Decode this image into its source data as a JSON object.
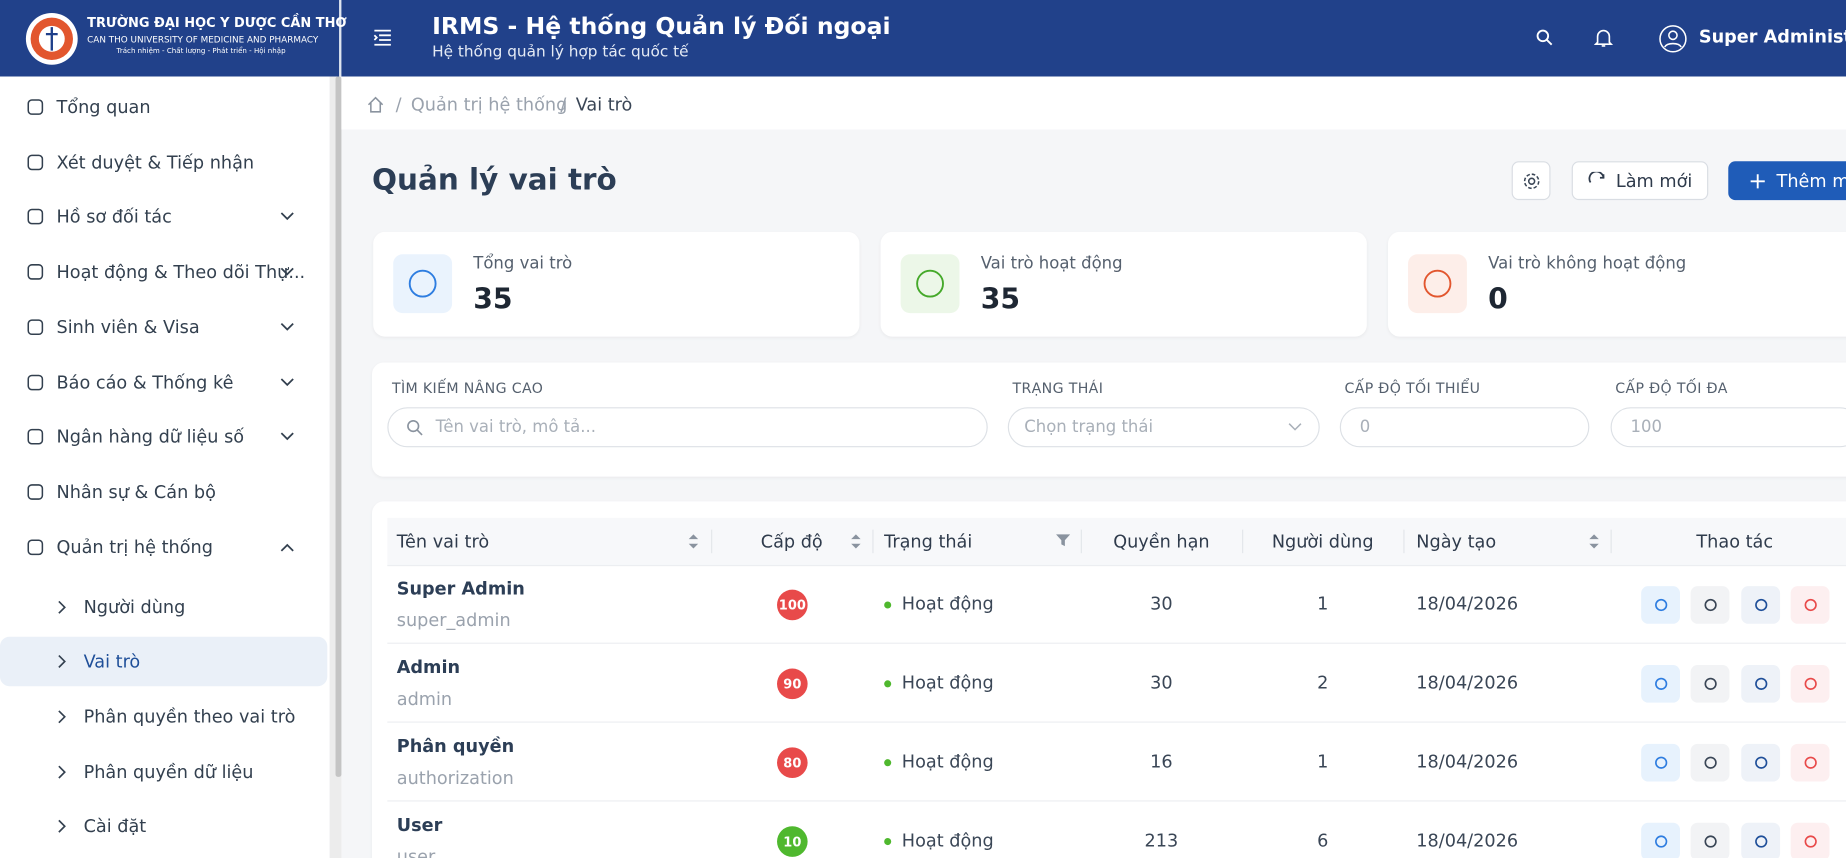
{
  "header": {
    "logo_line1": "TRƯỜNG ĐẠI HỌC Y DƯỢC CẦN THƠ",
    "logo_line2": "CAN THO UNIVERSITY OF MEDICINE AND PHARMACY",
    "logo_line3": "Trách nhiệm - Chất lượng - Phát triển - Hội nhập",
    "title": "IRMS - Hệ thống Quản lý Đối ngoại",
    "subtitle": "Hệ thống quản lý hợp tác quốc tế",
    "user": "Super Administrator"
  },
  "sidebar": {
    "items": [
      "Tổng quan",
      "Xét duyệt & Tiếp nhận",
      "Hồ sơ đối tác",
      "Hoạt động & Theo dõi Thự...",
      "Sinh viên & Visa",
      "Báo cáo & Thống kê",
      "Ngân hàng dữ liệu số",
      "Nhân sự & Cán bộ",
      "Quản trị hệ thống"
    ],
    "subitems": [
      "Người dùng",
      "Vai trò",
      "Phân quyền theo vai trò",
      "Phân quyền dữ liệu",
      "Cài đặt"
    ]
  },
  "breadcrumb": [
    "Quản trị hệ thống",
    "Vai trò"
  ],
  "page": {
    "title": "Quản lý vai trò",
    "refresh": "Làm mới",
    "add": "Thêm mới"
  },
  "stats": [
    {
      "label": "Tổng vai trò",
      "value": "35"
    },
    {
      "label": "Vai trò hoạt động",
      "value": "35"
    },
    {
      "label": "Vai trò không hoạt động",
      "value": "0"
    }
  ],
  "filters": {
    "search_label": "TÌM KIẾM NÂNG CAO",
    "search_placeholder": "Tên vai trò, mô tả...",
    "status_label": "TRẠNG THÁI",
    "status_placeholder": "Chọn trạng thái",
    "min_label": "CẤP ĐỘ TỐI THIỂU",
    "min_placeholder": "0",
    "max_label": "CẤP ĐỘ TỐI ĐA",
    "max_placeholder": "100"
  },
  "table": {
    "columns": [
      "Tên vai trò",
      "Cấp độ",
      "Trạng thái",
      "Quyền hạn",
      "Người dùng",
      "Ngày tạo",
      "Thao tác"
    ],
    "rows": [
      [
        "Super Admin",
        "super_admin",
        "100",
        "Hoạt động",
        "30",
        "1",
        "18/04/2026"
      ],
      [
        "Admin",
        "admin",
        "90",
        "Hoạt động",
        "30",
        "2",
        "18/04/2026"
      ],
      [
        "Phân quyền",
        "authorization",
        "80",
        "Hoạt động",
        "16",
        "1",
        "18/04/2026"
      ],
      [
        "User",
        "user",
        "10",
        "Hoạt động",
        "213",
        "6",
        "18/04/2026"
      ]
    ]
  }
}
